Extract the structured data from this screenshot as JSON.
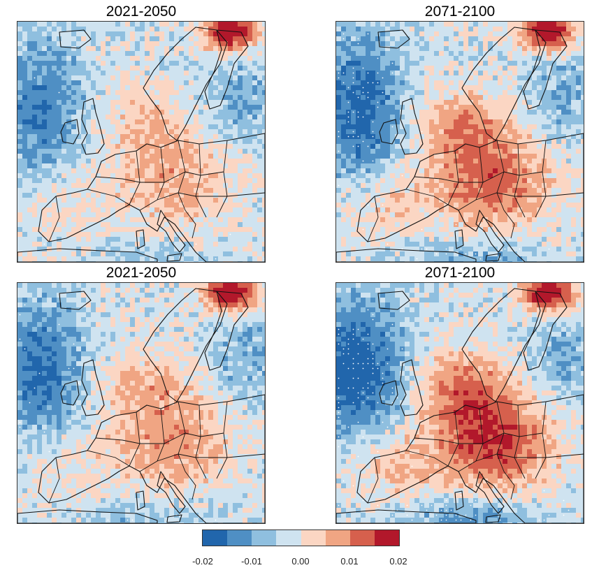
{
  "panels": [
    {
      "title": "2021-2050",
      "intensity": 0.45,
      "stipple": 0.02,
      "seed": 11
    },
    {
      "title": "2071-2100",
      "intensity": 0.8,
      "stipple": 0.18,
      "seed": 23
    },
    {
      "title": "2021-2050",
      "intensity": 0.55,
      "stipple": 0.06,
      "seed": 37
    },
    {
      "title": "2071-2100",
      "intensity": 1.0,
      "stipple": 0.3,
      "seed": 53
    }
  ],
  "colorbar": {
    "colors": [
      "#2166ac",
      "#4f8fc4",
      "#8fbfdf",
      "#cfe3f0",
      "#fbd6c3",
      "#f0a583",
      "#d6604d",
      "#b2182b"
    ],
    "tick_labels": [
      "-0.02",
      "-0.01",
      "0.00",
      "0.01",
      "0.02"
    ],
    "range": [
      -0.02,
      0.02
    ]
  }
}
